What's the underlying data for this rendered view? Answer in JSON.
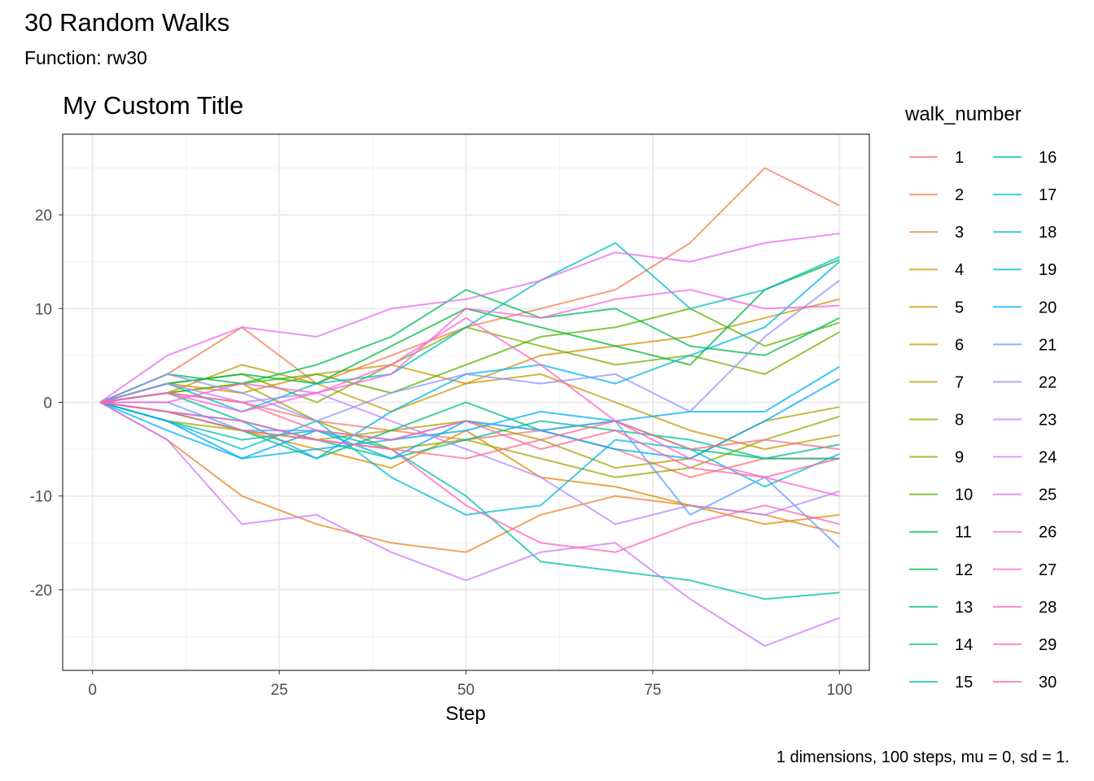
{
  "header": {
    "title": "30 Random Walks",
    "subtitle": "Function: rw30"
  },
  "caption": "1 dimensions, 100 steps, mu = 0, sd = 1.",
  "chart_data": {
    "type": "line",
    "title": "My Custom Title",
    "xlabel": "Step",
    "ylabel": "",
    "xlim": [
      -4,
      104
    ],
    "ylim": [
      -28.6,
      28.6
    ],
    "x_ticks": [
      0,
      25,
      50,
      75,
      100
    ],
    "x_tick_labels": [
      "0",
      "25",
      "50",
      "75",
      "100"
    ],
    "y_ticks": [
      20,
      10,
      0,
      -10,
      -20
    ],
    "y_tick_labels": [
      "20",
      "10",
      "0",
      "-10",
      "-20"
    ],
    "grid": true,
    "legend": {
      "title": "walk_number",
      "placement": "right",
      "columns": 2
    },
    "x": [
      1,
      10,
      20,
      30,
      40,
      50,
      60,
      70,
      80,
      90,
      100
    ],
    "series": [
      {
        "name": "1",
        "color": "#F8766D",
        "values": [
          0,
          1,
          0,
          -2,
          -3,
          -4,
          -3,
          -5,
          -8,
          -6,
          -6
        ]
      },
      {
        "name": "2",
        "color": "#F27D53",
        "values": [
          0,
          3,
          8,
          2,
          5,
          8,
          10,
          12,
          17,
          25,
          21
        ]
      },
      {
        "name": "3",
        "color": "#E98429",
        "values": [
          0,
          -4,
          -10,
          -13,
          -15,
          -16,
          -12,
          -10,
          -11,
          -12,
          -14
        ]
      },
      {
        "name": "4",
        "color": "#DE8C00",
        "values": [
          0,
          -1,
          -3,
          -5,
          -7,
          -3,
          -8,
          -9,
          -11,
          -13,
          -12
        ]
      },
      {
        "name": "5",
        "color": "#D09400",
        "values": [
          0,
          2,
          1,
          3,
          4,
          2,
          5,
          6,
          7,
          9,
          11
        ]
      },
      {
        "name": "6",
        "color": "#C09B00",
        "values": [
          0,
          1,
          4,
          2,
          -1,
          2,
          3,
          0,
          -3,
          -5,
          -3.5
        ]
      },
      {
        "name": "7",
        "color": "#AEA200",
        "values": [
          0,
          -2,
          -3,
          -4,
          -3,
          -2,
          -4,
          -7,
          -6,
          -2,
          -0.5
        ]
      },
      {
        "name": "8",
        "color": "#99A800",
        "values": [
          0,
          1,
          2,
          -2,
          -5,
          -4,
          -6,
          -8,
          -7,
          -4,
          -1.5
        ]
      },
      {
        "name": "9",
        "color": "#7FAE00",
        "values": [
          0,
          2,
          3,
          0,
          4,
          8,
          6,
          4,
          5,
          3,
          7.5
        ]
      },
      {
        "name": "10",
        "color": "#5BB300",
        "values": [
          0,
          1,
          2,
          3,
          1,
          4,
          7,
          8,
          10,
          6,
          8.5
        ]
      },
      {
        "name": "11",
        "color": "#00BA38",
        "values": [
          0,
          2,
          3,
          2,
          6,
          10,
          8,
          6,
          4,
          12,
          15.2
        ]
      },
      {
        "name": "12",
        "color": "#00BC56",
        "values": [
          0,
          3,
          2,
          4,
          7,
          12,
          9,
          10,
          6,
          5,
          9
        ]
      },
      {
        "name": "13",
        "color": "#00BE70",
        "values": [
          0,
          -1,
          -3,
          -6,
          -3,
          0,
          -3,
          -2,
          -5,
          -6,
          -6
        ]
      },
      {
        "name": "14",
        "color": "#00C08B",
        "values": [
          0,
          1,
          -2,
          -4,
          -6,
          -4,
          -2,
          -3,
          -4,
          -6,
          -4.5
        ]
      },
      {
        "name": "15",
        "color": "#00C1A3",
        "values": [
          0,
          -2,
          -4,
          -3,
          -5,
          -10,
          -17,
          -18,
          -19,
          -21,
          -20.3
        ]
      },
      {
        "name": "16",
        "color": "#00BFC4",
        "values": [
          0,
          2,
          -1,
          2,
          3,
          8,
          13,
          17,
          10,
          12,
          15.5
        ]
      },
      {
        "name": "17",
        "color": "#00BCD8",
        "values": [
          0,
          -2,
          -5,
          -2,
          -8,
          -12,
          -11,
          -4,
          -5,
          -9,
          -5.5
        ]
      },
      {
        "name": "18",
        "color": "#00B8E7",
        "values": [
          0,
          -1,
          -2,
          -6,
          -1,
          3,
          4,
          2,
          5,
          8,
          15
        ]
      },
      {
        "name": "19",
        "color": "#00B0F6",
        "values": [
          0,
          -3,
          -6,
          -5,
          -4,
          -3,
          -1,
          -2,
          -1,
          -1,
          3.8
        ]
      },
      {
        "name": "20",
        "color": "#00A9FF",
        "values": [
          0,
          -2,
          -6,
          -3,
          -6,
          -2,
          -3,
          -5,
          -6,
          -2,
          2.5
        ]
      },
      {
        "name": "21",
        "color": "#619CFF",
        "values": [
          0,
          0,
          -3,
          -3,
          -4,
          -2,
          -3,
          -2,
          -12,
          -8,
          -15.5
        ]
      },
      {
        "name": "22",
        "color": "#9590FF",
        "values": [
          0,
          3,
          1,
          -2,
          1,
          3,
          2,
          3,
          -1,
          7,
          13
        ]
      },
      {
        "name": "23",
        "color": "#B983FF",
        "values": [
          0,
          2,
          0,
          1,
          -2,
          -5,
          -8,
          -13,
          -11,
          -12,
          -9.5
        ]
      },
      {
        "name": "24",
        "color": "#CF78FF",
        "values": [
          0,
          -4,
          -13,
          -12,
          -16,
          -19,
          -16,
          -15,
          -21,
          -26,
          -23
        ]
      },
      {
        "name": "25",
        "color": "#E76BF3",
        "values": [
          0,
          5,
          8,
          7,
          10,
          11,
          13,
          16,
          15,
          17,
          18
        ]
      },
      {
        "name": "26",
        "color": "#F564E3",
        "values": [
          0,
          1,
          -1,
          1,
          3,
          10,
          9,
          11,
          12,
          10,
          10.3
        ]
      },
      {
        "name": "27",
        "color": "#FD61D1",
        "values": [
          0,
          0,
          2,
          1,
          4,
          9,
          4,
          -2,
          -6,
          -8,
          -10
        ]
      },
      {
        "name": "28",
        "color": "#FF62BC",
        "values": [
          0,
          -1,
          -2,
          -4,
          -5,
          -11,
          -15,
          -16,
          -13,
          -11,
          -13
        ]
      },
      {
        "name": "29",
        "color": "#FF67A4",
        "values": [
          0,
          1,
          0,
          -3,
          -4,
          -2,
          -5,
          -3,
          -7,
          -8,
          -6
        ]
      },
      {
        "name": "30",
        "color": "#FE6E8A",
        "values": [
          0,
          -1,
          -3,
          -4,
          -5,
          -6,
          -4,
          -2,
          -5,
          -4,
          -5
        ]
      }
    ]
  }
}
